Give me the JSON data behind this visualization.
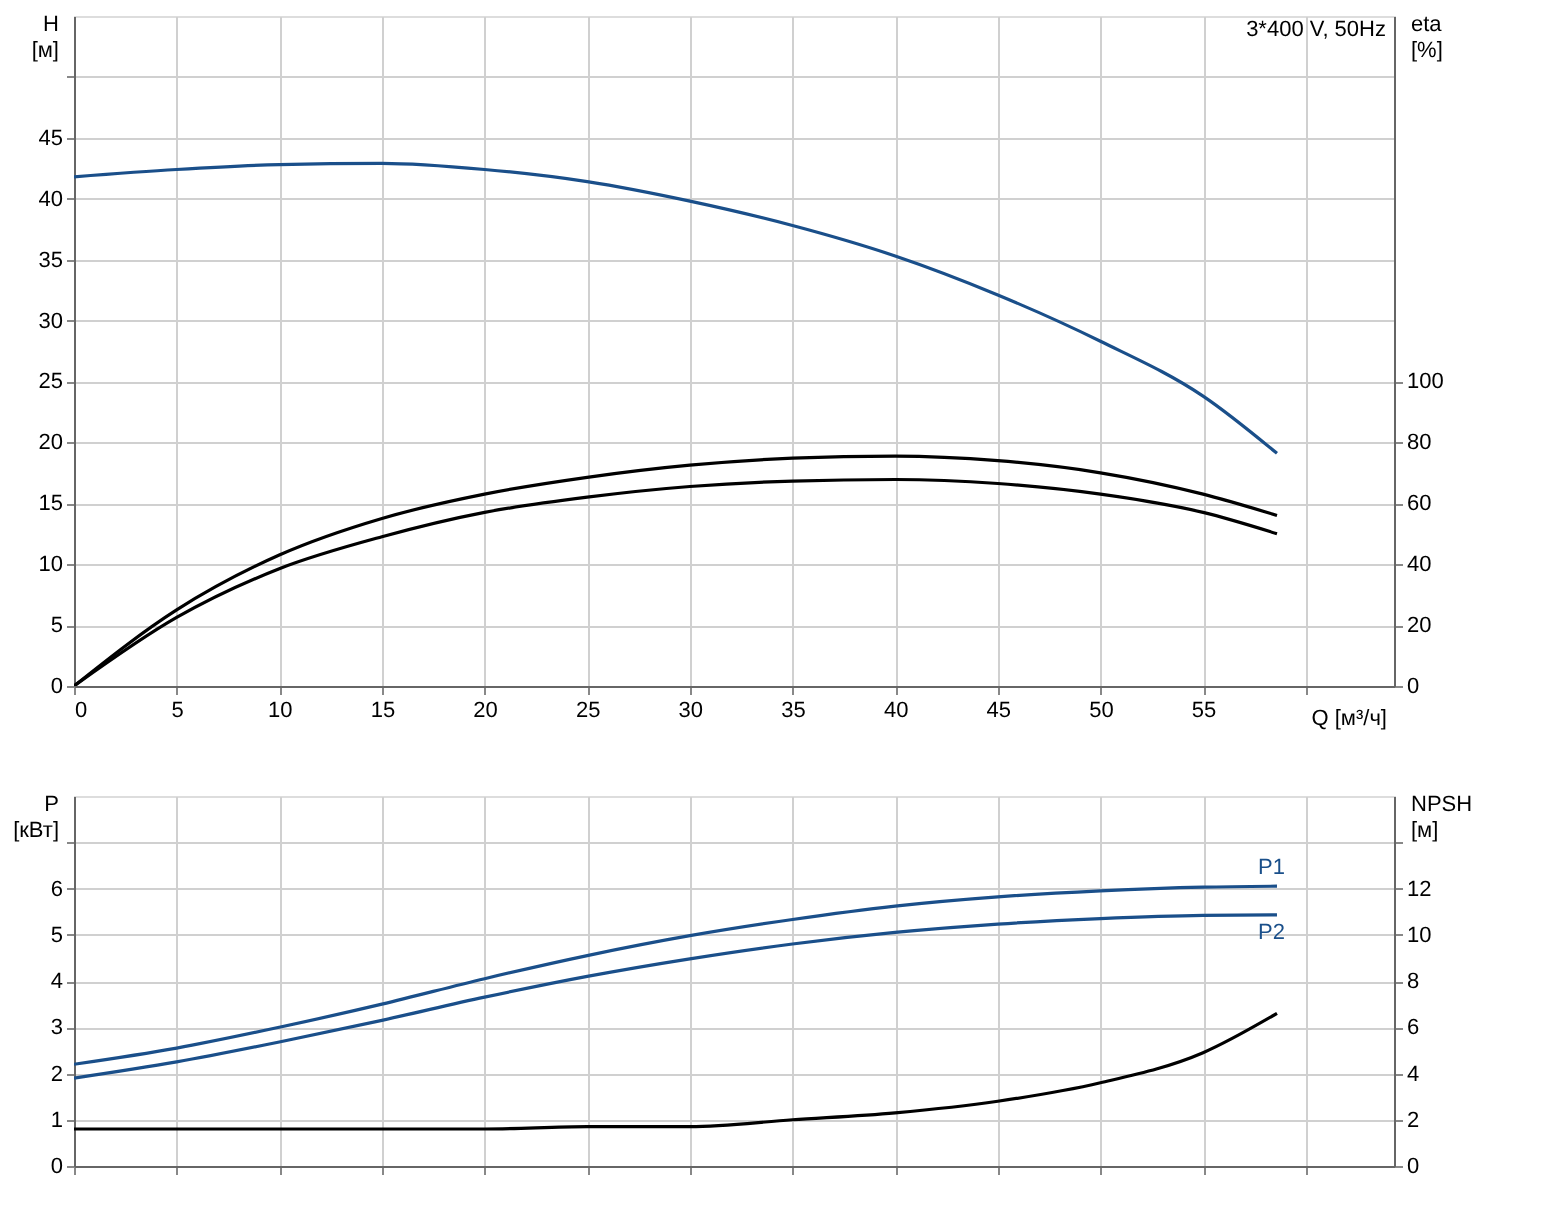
{
  "chart_data": [
    {
      "type": "line",
      "title": "3*400 V, 50Hz",
      "xlabel": "Q [м³/ч]",
      "ylabel": "H [м]",
      "y2label": "eta [%]",
      "x": [
        0,
        5,
        10,
        15,
        20,
        25,
        30,
        35,
        40,
        45,
        50,
        55,
        58.6
      ],
      "xlim": [
        0,
        64.3
      ],
      "xticks": [
        0,
        5,
        10,
        15,
        20,
        25,
        30,
        35,
        40,
        45,
        50,
        55,
        {
          "value": 60,
          "label": null
        }
      ],
      "ylim": [
        0,
        55
      ],
      "yticks": [
        0,
        5,
        10,
        15,
        20,
        25,
        30,
        35,
        40,
        45,
        {
          "value": 50,
          "label": null
        }
      ],
      "y2lim": [
        0,
        220
      ],
      "y2ticks": [
        0,
        20,
        40,
        60,
        80,
        100
      ],
      "grid": true,
      "legend": false,
      "marker": "none",
      "line_style": "solid",
      "series": [
        {
          "color": "#1a4f8a",
          "values": [
            41.8,
            42.4,
            42.8,
            42.9,
            42.4,
            41.4,
            39.8,
            37.8,
            35.3,
            32.1,
            28.3,
            23.8,
            19.1
          ]
        },
        {
          "color": "#000000",
          "axis": "y2",
          "values": [
            0,
            25,
            43,
            55,
            63,
            68.5,
            72.5,
            74.8,
            75.5,
            74,
            70,
            63,
            56
          ]
        },
        {
          "color": "#000000",
          "axis": "y2",
          "values": [
            0,
            22.5,
            38.5,
            49,
            57,
            62,
            65.5,
            67.3,
            67.8,
            66.5,
            63,
            57,
            50
          ]
        }
      ]
    },
    {
      "type": "line",
      "ylabel": "P [кВт]",
      "y2label": "NPSH [м]",
      "x": [
        0,
        5,
        10,
        15,
        20,
        25,
        30,
        35,
        40,
        45,
        50,
        55,
        58.6
      ],
      "xlim": [
        0,
        64.3
      ],
      "xticks": [
        0,
        5,
        10,
        15,
        20,
        25,
        30,
        35,
        40,
        45,
        50,
        55,
        60
      ],
      "ylim": [
        0,
        8
      ],
      "yticks": [
        0,
        1,
        2,
        3,
        4,
        5,
        6,
        {
          "value": 7,
          "label": null
        }
      ],
      "y2lim": [
        0,
        16
      ],
      "y2ticks": [
        0,
        2,
        4,
        6,
        8,
        10,
        12,
        {
          "value": 14,
          "label": null
        }
      ],
      "tick_labels": "y",
      "grid": true,
      "legend": false,
      "marker": "none",
      "line_style": "solid",
      "series": [
        {
          "name": "P1",
          "color": "#1a4f8a",
          "values": [
            2.2,
            2.55,
            3.0,
            3.5,
            4.05,
            4.55,
            4.98,
            5.33,
            5.62,
            5.82,
            5.95,
            6.03,
            6.05
          ]
        },
        {
          "name": "P2",
          "color": "#1a4f8a",
          "values": [
            1.9,
            2.25,
            2.68,
            3.15,
            3.65,
            4.1,
            4.48,
            4.8,
            5.05,
            5.23,
            5.35,
            5.42,
            5.43
          ]
        },
        {
          "color": "#000000",
          "axis": "y2",
          "values": [
            1.6,
            1.6,
            1.6,
            1.6,
            1.6,
            1.7,
            1.7,
            2.0,
            2.3,
            2.8,
            3.6,
            4.9,
            6.6
          ]
        }
      ]
    }
  ]
}
